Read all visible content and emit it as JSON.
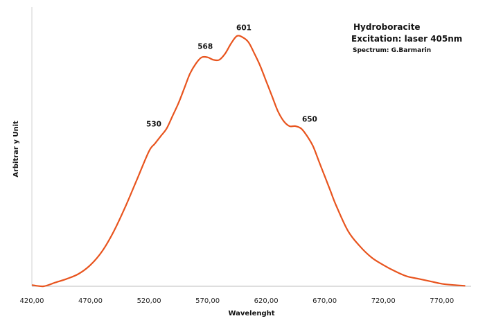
{
  "chart_data": {
    "type": "line",
    "title": "",
    "annotation_lines": [
      "Hydroboracite",
      "Excitation: laser 405nm",
      "Spectrum: G.Barmarin"
    ],
    "xlabel": "Wavelenght",
    "ylabel": "Arbitrar y Unit",
    "x_ticks": [
      "420,00",
      "470,00",
      "520,00",
      "570,00",
      "620,00",
      "670,00",
      "720,00",
      "770,00"
    ],
    "xlim": [
      420,
      795
    ],
    "ylim": [
      0,
      1.05
    ],
    "grid": false,
    "line_color": "#E8541E",
    "peak_labels": [
      {
        "x": 530,
        "label": "530"
      },
      {
        "x": 568,
        "label": "568"
      },
      {
        "x": 601,
        "label": "601"
      },
      {
        "x": 650,
        "label": "650"
      }
    ],
    "series": [
      {
        "x": [
          420,
          430,
          440,
          450,
          460,
          470,
          480,
          490,
          500,
          510,
          520,
          525,
          530,
          535,
          540,
          545,
          550,
          555,
          560,
          565,
          570,
          575,
          580,
          585,
          590,
          595,
          600,
          605,
          610,
          615,
          620,
          625,
          630,
          635,
          640,
          645,
          650,
          655,
          660,
          665,
          670,
          675,
          680,
          690,
          700,
          710,
          720,
          730,
          740,
          750,
          760,
          770,
          780,
          790
        ],
        "values": [
          0.005,
          0,
          0.015,
          0.03,
          0.05,
          0.085,
          0.14,
          0.22,
          0.32,
          0.43,
          0.54,
          0.57,
          0.6,
          0.63,
          0.68,
          0.73,
          0.79,
          0.85,
          0.89,
          0.915,
          0.915,
          0.905,
          0.905,
          0.93,
          0.97,
          1.0,
          0.995,
          0.975,
          0.93,
          0.88,
          0.82,
          0.76,
          0.7,
          0.66,
          0.64,
          0.64,
          0.63,
          0.6,
          0.56,
          0.5,
          0.44,
          0.38,
          0.32,
          0.22,
          0.16,
          0.115,
          0.085,
          0.06,
          0.04,
          0.03,
          0.02,
          0.01,
          0.005,
          0.002
        ]
      }
    ]
  }
}
